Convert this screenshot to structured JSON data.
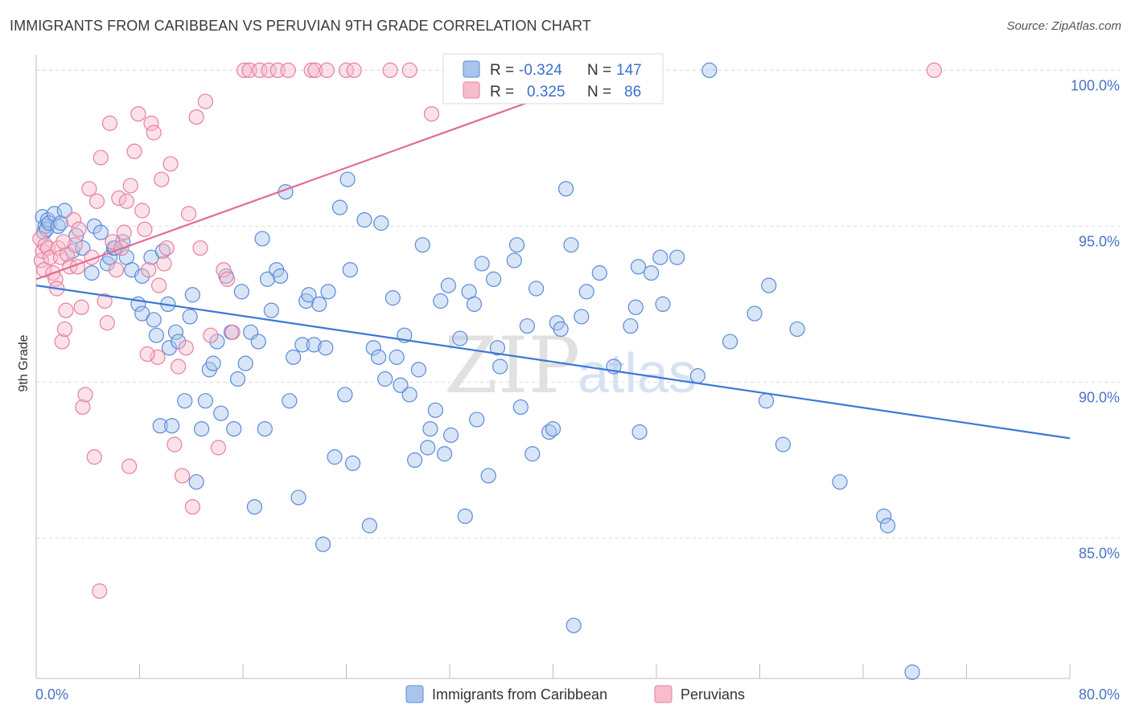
{
  "title": "IMMIGRANTS FROM CARIBBEAN VS PERUVIAN 9TH GRADE CORRELATION CHART",
  "source": "Source: ZipAtlas.com",
  "watermark": {
    "zip": "ZIP",
    "atlas": "atlas"
  },
  "legend": {
    "rows": [
      {
        "r_label": "R =",
        "r_value": "-0.324",
        "n_label": "N =",
        "n_value": "147",
        "color": "#a9c5ee",
        "stroke": "#5b8ad6"
      },
      {
        "r_label": "R =",
        "r_value": "0.325",
        "n_label": "N =",
        "n_value": "86",
        "color": "#f7bccd",
        "stroke": "#e77fa0"
      }
    ]
  },
  "chart_data": {
    "type": "scatter",
    "title": "IMMIGRANTS FROM CARIBBEAN VS PERUVIAN 9TH GRADE CORRELATION CHART",
    "xlabel": "",
    "ylabel": "9th Grade",
    "xlim": [
      0,
      80
    ],
    "ylim": [
      80.5,
      100.5
    ],
    "x_tick_labels": [
      "0.0%",
      "80.0%"
    ],
    "y_tick_values": [
      85,
      90,
      95,
      100
    ],
    "y_tick_labels": [
      "85.0%",
      "90.0%",
      "95.0%",
      "100.0%"
    ],
    "grid": true,
    "legend_position": "top-center",
    "series": [
      {
        "name": "Immigrants from Caribbean",
        "color": "#a9c5ee",
        "stroke": "#5b8ad6",
        "trend": {
          "x": [
            0,
            80
          ],
          "y": [
            93.1,
            88.2
          ],
          "color": "#3a78d8"
        },
        "points": [
          [
            0.5,
            95.3
          ],
          [
            0.6,
            94.8
          ],
          [
            0.7,
            95.0
          ],
          [
            0.8,
            94.9
          ],
          [
            0.9,
            95.2
          ],
          [
            1.0,
            95.1
          ],
          [
            1.4,
            95.4
          ],
          [
            1.7,
            95.0
          ],
          [
            1.9,
            95.1
          ],
          [
            2.2,
            95.5
          ],
          [
            2.8,
            94.2
          ],
          [
            3.1,
            94.7
          ],
          [
            3.6,
            94.3
          ],
          [
            4.3,
            93.5
          ],
          [
            4.5,
            95.0
          ],
          [
            5.0,
            94.8
          ],
          [
            5.5,
            93.8
          ],
          [
            5.7,
            94.0
          ],
          [
            6.0,
            94.3
          ],
          [
            6.7,
            94.5
          ],
          [
            7.0,
            94.0
          ],
          [
            7.4,
            93.6
          ],
          [
            7.9,
            92.5
          ],
          [
            8.2,
            92.2
          ],
          [
            8.2,
            93.4
          ],
          [
            8.9,
            94.0
          ],
          [
            9.3,
            91.5
          ],
          [
            9.6,
            88.6
          ],
          [
            9.8,
            94.2
          ],
          [
            10.2,
            92.5
          ],
          [
            10.3,
            91.1
          ],
          [
            10.5,
            88.6
          ],
          [
            10.8,
            91.6
          ],
          [
            11.0,
            91.3
          ],
          [
            11.5,
            89.4
          ],
          [
            11.9,
            92.1
          ],
          [
            12.1,
            92.8
          ],
          [
            12.4,
            86.8
          ],
          [
            12.8,
            88.5
          ],
          [
            13.1,
            89.4
          ],
          [
            13.4,
            90.4
          ],
          [
            13.7,
            90.6
          ],
          [
            14.0,
            91.3
          ],
          [
            14.3,
            89.0
          ],
          [
            14.7,
            93.4
          ],
          [
            15.1,
            91.6
          ],
          [
            15.3,
            88.5
          ],
          [
            15.6,
            90.1
          ],
          [
            15.9,
            92.9
          ],
          [
            16.2,
            90.6
          ],
          [
            16.6,
            91.6
          ],
          [
            16.9,
            86.0
          ],
          [
            17.2,
            91.3
          ],
          [
            17.5,
            94.6
          ],
          [
            17.7,
            88.5
          ],
          [
            17.9,
            93.3
          ],
          [
            18.2,
            92.3
          ],
          [
            18.6,
            93.6
          ],
          [
            18.9,
            93.4
          ],
          [
            19.3,
            96.1
          ],
          [
            19.6,
            89.4
          ],
          [
            19.9,
            90.8
          ],
          [
            20.3,
            86.3
          ],
          [
            20.6,
            91.2
          ],
          [
            20.9,
            92.6
          ],
          [
            21.1,
            92.8
          ],
          [
            21.5,
            91.2
          ],
          [
            21.9,
            92.5
          ],
          [
            22.2,
            84.8
          ],
          [
            22.4,
            91.1
          ],
          [
            22.6,
            92.9
          ],
          [
            23.1,
            87.6
          ],
          [
            23.5,
            95.6
          ],
          [
            23.9,
            89.6
          ],
          [
            24.1,
            96.5
          ],
          [
            24.3,
            93.6
          ],
          [
            24.5,
            87.4
          ],
          [
            25.4,
            95.2
          ],
          [
            25.8,
            85.4
          ],
          [
            26.1,
            91.1
          ],
          [
            26.5,
            90.8
          ],
          [
            26.7,
            95.1
          ],
          [
            27.0,
            90.1
          ],
          [
            27.6,
            92.7
          ],
          [
            27.9,
            90.8
          ],
          [
            28.2,
            89.9
          ],
          [
            28.5,
            91.5
          ],
          [
            28.9,
            89.6
          ],
          [
            29.3,
            87.5
          ],
          [
            29.6,
            90.4
          ],
          [
            29.9,
            94.4
          ],
          [
            30.3,
            87.9
          ],
          [
            30.5,
            88.5
          ],
          [
            30.9,
            89.1
          ],
          [
            31.3,
            92.6
          ],
          [
            31.6,
            87.7
          ],
          [
            31.9,
            93.1
          ],
          [
            32.1,
            88.3
          ],
          [
            32.8,
            91.4
          ],
          [
            33.2,
            85.7
          ],
          [
            33.5,
            92.9
          ],
          [
            33.9,
            92.5
          ],
          [
            34.1,
            88.8
          ],
          [
            34.5,
            93.8
          ],
          [
            35.0,
            87.0
          ],
          [
            35.4,
            93.3
          ],
          [
            35.7,
            91.1
          ],
          [
            35.9,
            90.5
          ],
          [
            37.0,
            93.9
          ],
          [
            37.2,
            94.4
          ],
          [
            37.5,
            89.2
          ],
          [
            38.0,
            91.8
          ],
          [
            38.4,
            87.7
          ],
          [
            38.7,
            93.0
          ],
          [
            39.7,
            88.4
          ],
          [
            40.0,
            88.5
          ],
          [
            40.3,
            91.9
          ],
          [
            40.6,
            91.7
          ],
          [
            41.0,
            96.2
          ],
          [
            41.4,
            94.4
          ],
          [
            41.6,
            82.2
          ],
          [
            42.2,
            92.1
          ],
          [
            42.6,
            92.9
          ],
          [
            43.6,
            93.5
          ],
          [
            44.7,
            90.5
          ],
          [
            46.0,
            91.8
          ],
          [
            46.4,
            92.4
          ],
          [
            46.6,
            93.7
          ],
          [
            46.7,
            88.4
          ],
          [
            47.6,
            93.5
          ],
          [
            48.3,
            94.0
          ],
          [
            48.5,
            92.5
          ],
          [
            49.6,
            94.0
          ],
          [
            51.2,
            90.2
          ],
          [
            52.1,
            100.0
          ],
          [
            53.7,
            91.3
          ],
          [
            55.6,
            92.2
          ],
          [
            56.5,
            89.4
          ],
          [
            56.7,
            93.1
          ],
          [
            57.8,
            88.0
          ],
          [
            58.9,
            91.7
          ],
          [
            62.2,
            86.8
          ],
          [
            65.6,
            85.7
          ],
          [
            65.9,
            85.4
          ],
          [
            67.8,
            80.7
          ],
          [
            6.1,
            94.3
          ],
          [
            9.1,
            92.0
          ]
        ]
      },
      {
        "name": "Peruvians",
        "color": "#f7bccd",
        "stroke": "#e77fa0",
        "trend": {
          "x": [
            0,
            45
          ],
          "y": [
            93.3,
            100.0
          ],
          "color": "#e46b92"
        },
        "points": [
          [
            0.3,
            94.6
          ],
          [
            0.4,
            93.9
          ],
          [
            0.5,
            94.2
          ],
          [
            0.6,
            93.6
          ],
          [
            0.7,
            94.4
          ],
          [
            0.9,
            94.3
          ],
          [
            1.1,
            94.0
          ],
          [
            1.3,
            93.5
          ],
          [
            1.5,
            93.3
          ],
          [
            1.6,
            93.0
          ],
          [
            1.7,
            94.3
          ],
          [
            1.9,
            94.0
          ],
          [
            2.0,
            91.3
          ],
          [
            2.2,
            91.7
          ],
          [
            2.3,
            92.3
          ],
          [
            2.4,
            94.1
          ],
          [
            2.6,
            93.7
          ],
          [
            2.9,
            95.2
          ],
          [
            3.0,
            94.4
          ],
          [
            3.3,
            94.9
          ],
          [
            3.5,
            92.4
          ],
          [
            3.6,
            89.2
          ],
          [
            3.8,
            89.6
          ],
          [
            4.1,
            96.2
          ],
          [
            4.3,
            94.0
          ],
          [
            4.5,
            87.6
          ],
          [
            4.7,
            95.8
          ],
          [
            5.0,
            97.2
          ],
          [
            5.3,
            92.6
          ],
          [
            5.5,
            91.9
          ],
          [
            5.7,
            98.3
          ],
          [
            5.9,
            94.5
          ],
          [
            6.2,
            93.6
          ],
          [
            6.4,
            95.9
          ],
          [
            6.6,
            94.3
          ],
          [
            6.8,
            94.8
          ],
          [
            7.0,
            95.8
          ],
          [
            7.3,
            96.3
          ],
          [
            7.6,
            97.4
          ],
          [
            7.9,
            98.6
          ],
          [
            8.2,
            95.5
          ],
          [
            8.4,
            94.9
          ],
          [
            8.7,
            93.6
          ],
          [
            8.9,
            98.3
          ],
          [
            9.1,
            98.0
          ],
          [
            9.4,
            90.8
          ],
          [
            9.7,
            96.5
          ],
          [
            9.9,
            93.8
          ],
          [
            10.1,
            94.3
          ],
          [
            10.4,
            97.0
          ],
          [
            10.7,
            88.0
          ],
          [
            11.0,
            90.5
          ],
          [
            11.3,
            87.0
          ],
          [
            11.6,
            91.1
          ],
          [
            11.8,
            95.4
          ],
          [
            12.1,
            86.0
          ],
          [
            12.4,
            98.5
          ],
          [
            12.7,
            94.3
          ],
          [
            13.1,
            99.0
          ],
          [
            13.5,
            91.5
          ],
          [
            14.1,
            87.9
          ],
          [
            14.5,
            93.6
          ],
          [
            14.8,
            93.3
          ],
          [
            15.2,
            91.6
          ],
          [
            16.1,
            100.0
          ],
          [
            16.5,
            100.0
          ],
          [
            17.3,
            100.0
          ],
          [
            18.0,
            100.0
          ],
          [
            18.7,
            100.0
          ],
          [
            19.5,
            100.0
          ],
          [
            21.3,
            100.0
          ],
          [
            21.6,
            100.0
          ],
          [
            22.5,
            100.0
          ],
          [
            24.0,
            100.0
          ],
          [
            24.6,
            100.0
          ],
          [
            27.4,
            100.0
          ],
          [
            28.9,
            100.0
          ],
          [
            30.6,
            98.6
          ],
          [
            34.7,
            100.0
          ],
          [
            69.5,
            100.0
          ],
          [
            8.6,
            90.9
          ],
          [
            9.5,
            93.1
          ],
          [
            7.2,
            87.3
          ],
          [
            2.1,
            94.5
          ],
          [
            3.2,
            93.7
          ],
          [
            4.9,
            83.3
          ]
        ]
      }
    ]
  },
  "bottom_legend": [
    {
      "label": "Immigrants from Caribbean",
      "color": "#a9c5ee",
      "stroke": "#5b8ad6"
    },
    {
      "label": "Peruvians",
      "color": "#f7bccd",
      "stroke": "#e77fa0"
    }
  ]
}
